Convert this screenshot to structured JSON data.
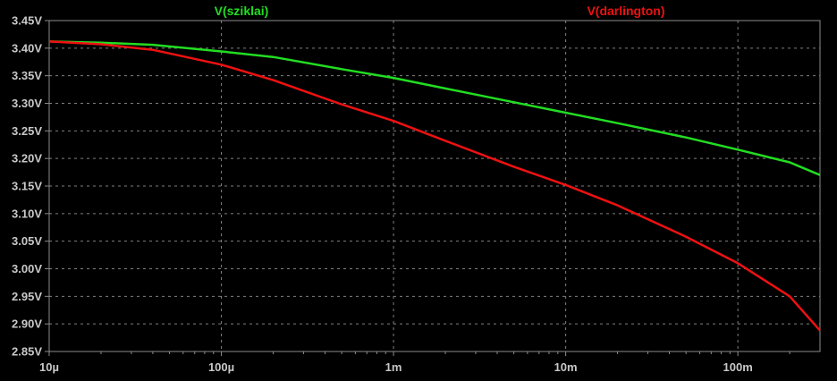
{
  "chart_data": {
    "type": "line",
    "x_scale": "log",
    "xlim": [
      1e-05,
      0.3
    ],
    "ylim": [
      2.85,
      3.45
    ],
    "grid": true,
    "x_ticks": [
      {
        "value": 1e-05,
        "label": "10µ"
      },
      {
        "value": 0.0001,
        "label": "100µ"
      },
      {
        "value": 0.001,
        "label": "1m"
      },
      {
        "value": 0.01,
        "label": "10m"
      },
      {
        "value": 0.1,
        "label": "100m"
      }
    ],
    "y_ticks": [
      {
        "value": 3.45,
        "label": "3.45V"
      },
      {
        "value": 3.4,
        "label": "3.40V"
      },
      {
        "value": 3.35,
        "label": "3.35V"
      },
      {
        "value": 3.3,
        "label": "3.30V"
      },
      {
        "value": 3.25,
        "label": "3.25V"
      },
      {
        "value": 3.2,
        "label": "3.20V"
      },
      {
        "value": 3.15,
        "label": "3.15V"
      },
      {
        "value": 3.1,
        "label": "3.10V"
      },
      {
        "value": 3.05,
        "label": "3.05V"
      },
      {
        "value": 3.0,
        "label": "3.00V"
      },
      {
        "value": 2.95,
        "label": "2.95V"
      },
      {
        "value": 2.9,
        "label": "2.90V"
      },
      {
        "value": 2.85,
        "label": "2.85V"
      }
    ],
    "series": [
      {
        "name": "V(sziklai)",
        "color": "#22dd22",
        "x": [
          1e-05,
          2e-05,
          4e-05,
          0.0001,
          0.0002,
          0.0005,
          0.001,
          0.002,
          0.005,
          0.01,
          0.02,
          0.05,
          0.1,
          0.2,
          0.3
        ],
        "y": [
          3.412,
          3.41,
          3.406,
          3.394,
          3.384,
          3.362,
          3.346,
          3.327,
          3.302,
          3.283,
          3.264,
          3.238,
          3.216,
          3.193,
          3.17
        ]
      },
      {
        "name": "V(darlington)",
        "color": "#ee1111",
        "x": [
          1e-05,
          2e-05,
          4e-05,
          0.0001,
          0.0002,
          0.0005,
          0.001,
          0.002,
          0.005,
          0.01,
          0.02,
          0.05,
          0.1,
          0.2,
          0.3
        ],
        "y": [
          3.412,
          3.407,
          3.397,
          3.37,
          3.342,
          3.298,
          3.268,
          3.232,
          3.185,
          3.152,
          3.115,
          3.058,
          3.01,
          2.95,
          2.888
        ]
      }
    ]
  }
}
